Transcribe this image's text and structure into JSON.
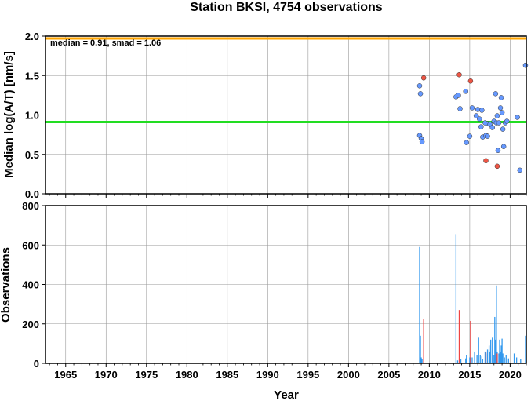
{
  "chart_data": [
    {
      "type": "scatter",
      "title": "Station BKSI, 4754 observations",
      "ylabel": "Median log(A/T) [nm/s]",
      "xlabel": "",
      "xlim": [
        1962.5,
        2022.0
      ],
      "ylim": [
        0.0,
        2.0
      ],
      "yticks": [
        "0.0",
        "0.5",
        "1.0",
        "1.5",
        "2.0"
      ],
      "annotation": "median = 0.91, smad = 1.06",
      "reference_lines": [
        {
          "name": "median",
          "y": 0.91,
          "color": "#22dd22"
        },
        {
          "name": "upper",
          "y": 1.97,
          "color": "#ffa500"
        }
      ],
      "series": [
        {
          "color": "#6699ff",
          "points": [
            [
              2008.8,
              1.37
            ],
            [
              2008.9,
              1.27
            ],
            [
              2008.8,
              0.74
            ],
            [
              2009.0,
              0.7
            ],
            [
              2009.1,
              0.66
            ],
            [
              2013.3,
              1.23
            ],
            [
              2013.6,
              1.25
            ],
            [
              2013.8,
              1.08
            ],
            [
              2014.5,
              1.3
            ],
            [
              2014.6,
              0.65
            ],
            [
              2015.0,
              0.73
            ],
            [
              2015.3,
              1.09
            ],
            [
              2015.8,
              0.99
            ],
            [
              2016.0,
              1.07
            ],
            [
              2016.2,
              0.95
            ],
            [
              2016.4,
              0.85
            ],
            [
              2016.5,
              1.06
            ],
            [
              2016.6,
              0.72
            ],
            [
              2016.9,
              0.9
            ],
            [
              2017.0,
              0.74
            ],
            [
              2017.2,
              0.73
            ],
            [
              2017.3,
              0.89
            ],
            [
              2017.5,
              0.88
            ],
            [
              2017.8,
              0.84
            ],
            [
              2018.0,
              0.92
            ],
            [
              2018.2,
              1.27
            ],
            [
              2018.3,
              0.9
            ],
            [
              2018.4,
              0.99
            ],
            [
              2018.5,
              0.55
            ],
            [
              2018.6,
              0.9
            ],
            [
              2018.8,
              1.09
            ],
            [
              2018.9,
              1.22
            ],
            [
              2019.0,
              1.03
            ],
            [
              2019.1,
              0.82
            ],
            [
              2019.2,
              0.6
            ],
            [
              2019.4,
              0.9
            ],
            [
              2019.6,
              0.92
            ],
            [
              2020.9,
              0.97
            ],
            [
              2021.2,
              0.3
            ],
            [
              2021.9,
              1.63
            ]
          ]
        },
        {
          "color": "#ee5544",
          "points": [
            [
              2009.3,
              1.47
            ],
            [
              2013.7,
              1.51
            ],
            [
              2015.1,
              1.43
            ],
            [
              2017.0,
              0.42
            ],
            [
              2018.4,
              0.35
            ]
          ]
        }
      ]
    },
    {
      "type": "bar",
      "title": "",
      "xlabel": "Year",
      "ylabel": "Observations",
      "xlim": [
        1962.5,
        2022.0
      ],
      "ylim": [
        0,
        800
      ],
      "xticks": [
        "1965",
        "1970",
        "1975",
        "1980",
        "1985",
        "1990",
        "1995",
        "2000",
        "2005",
        "2010",
        "2015",
        "2020"
      ],
      "yticks": [
        "0",
        "200",
        "400",
        "600",
        "800"
      ],
      "series": [
        {
          "color": "#3399ee",
          "points": [
            [
              2008.8,
              590
            ],
            [
              2008.9,
              140
            ],
            [
              2009.0,
              30
            ],
            [
              2009.1,
              20
            ],
            [
              2013.3,
              655
            ],
            [
              2013.5,
              15
            ],
            [
              2013.9,
              20
            ],
            [
              2014.5,
              25
            ],
            [
              2014.6,
              40
            ],
            [
              2015.0,
              30
            ],
            [
              2015.3,
              30
            ],
            [
              2015.6,
              60
            ],
            [
              2015.9,
              40
            ],
            [
              2016.1,
              130
            ],
            [
              2016.3,
              40
            ],
            [
              2016.5,
              35
            ],
            [
              2016.6,
              20
            ],
            [
              2016.9,
              60
            ],
            [
              2017.0,
              50
            ],
            [
              2017.2,
              70
            ],
            [
              2017.4,
              90
            ],
            [
              2017.5,
              60
            ],
            [
              2017.6,
              120
            ],
            [
              2017.8,
              130
            ],
            [
              2018.0,
              40
            ],
            [
              2018.1,
              235
            ],
            [
              2018.2,
              120
            ],
            [
              2018.3,
              395
            ],
            [
              2018.4,
              60
            ],
            [
              2018.6,
              50
            ],
            [
              2018.7,
              120
            ],
            [
              2018.8,
              60
            ],
            [
              2018.9,
              90
            ],
            [
              2019.0,
              125
            ],
            [
              2019.1,
              50
            ],
            [
              2019.3,
              30
            ],
            [
              2019.5,
              40
            ],
            [
              2019.8,
              25
            ],
            [
              2020.5,
              50
            ],
            [
              2020.8,
              30
            ],
            [
              2021.3,
              20
            ],
            [
              2021.9,
              140
            ]
          ]
        },
        {
          "color": "#ee4444",
          "points": [
            [
              2009.3,
              225
            ],
            [
              2013.7,
              270
            ],
            [
              2015.1,
              215
            ],
            [
              2017.0,
              60
            ],
            [
              2018.4,
              50
            ]
          ]
        }
      ]
    }
  ]
}
